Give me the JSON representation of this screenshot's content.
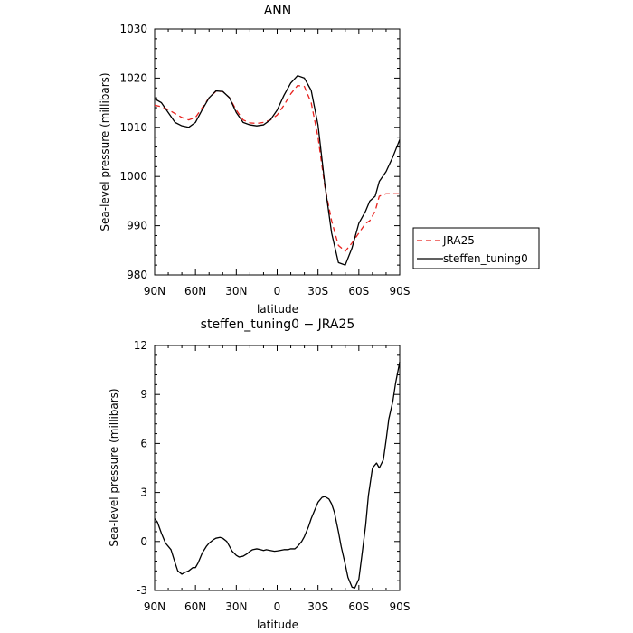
{
  "chart_data": [
    {
      "type": "line",
      "title": "ANN",
      "xlabel": "latitude",
      "ylabel": "Sea-level pressure (millibars)",
      "xlim": [
        90,
        -90
      ],
      "ylim": [
        980,
        1030
      ],
      "xticks": [
        {
          "value": 90,
          "label": "90N"
        },
        {
          "value": 60,
          "label": "60N"
        },
        {
          "value": 30,
          "label": "30N"
        },
        {
          "value": 0,
          "label": "0"
        },
        {
          "value": -30,
          "label": "30S"
        },
        {
          "value": -60,
          "label": "60S"
        },
        {
          "value": -90,
          "label": "90S"
        }
      ],
      "yticks": [
        980,
        990,
        1000,
        1010,
        1020,
        1030
      ],
      "legend_position": "right",
      "series": [
        {
          "name": "JRA25",
          "color": "#e8231f",
          "dash": "dashed",
          "x": [
            90,
            85,
            80,
            75,
            70,
            65,
            60,
            55,
            50,
            45,
            40,
            35,
            30,
            25,
            20,
            15,
            10,
            5,
            0,
            -5,
            -10,
            -15,
            -20,
            -25,
            -30,
            -35,
            -40,
            -45,
            -50,
            -55,
            -60,
            -65,
            -68,
            -72,
            -75,
            -80,
            -85,
            -90
          ],
          "y": [
            1014.5,
            1014.2,
            1013.6,
            1012.8,
            1012.0,
            1011.5,
            1012.0,
            1014.0,
            1016.0,
            1017.3,
            1017.3,
            1016.0,
            1013.5,
            1011.5,
            1010.9,
            1010.8,
            1011.0,
            1011.5,
            1012.5,
            1014.5,
            1016.8,
            1018.5,
            1018.3,
            1015.0,
            1008.0,
            998.0,
            991.0,
            986.0,
            984.8,
            986.5,
            988.5,
            990.5,
            991.0,
            993.0,
            996.0,
            996.5,
            996.5,
            996.5
          ]
        },
        {
          "name": "steffen_tuning0",
          "color": "#000000",
          "dash": "solid",
          "x": [
            90,
            85,
            80,
            75,
            70,
            65,
            60,
            55,
            50,
            45,
            40,
            35,
            30,
            25,
            20,
            15,
            10,
            5,
            0,
            -5,
            -10,
            -15,
            -20,
            -25,
            -30,
            -35,
            -40,
            -45,
            -50,
            -55,
            -60,
            -65,
            -68,
            -72,
            -75,
            -80,
            -85,
            -90
          ],
          "y": [
            1015.8,
            1015.0,
            1013.0,
            1011.0,
            1010.3,
            1010.0,
            1011.0,
            1013.6,
            1016.0,
            1017.4,
            1017.3,
            1016.0,
            1013.0,
            1011.0,
            1010.5,
            1010.3,
            1010.5,
            1011.5,
            1013.5,
            1016.5,
            1019.0,
            1020.5,
            1020.0,
            1017.5,
            1010.5,
            998.5,
            988.5,
            982.5,
            982.0,
            985.5,
            990.5,
            993.0,
            995.0,
            996.0,
            999.0,
            1001.0,
            1004.0,
            1007.5
          ]
        }
      ]
    },
    {
      "type": "line",
      "title": "steffen_tuning0 − JRA25",
      "xlabel": "latitude",
      "ylabel": "Sea-level pressure (millibars)",
      "xlim": [
        90,
        -90
      ],
      "ylim": [
        -3,
        12
      ],
      "xticks": [
        {
          "value": 90,
          "label": "90N"
        },
        {
          "value": 60,
          "label": "60N"
        },
        {
          "value": 30,
          "label": "30N"
        },
        {
          "value": 0,
          "label": "0"
        },
        {
          "value": -30,
          "label": "30S"
        },
        {
          "value": -60,
          "label": "60S"
        },
        {
          "value": -90,
          "label": "90S"
        }
      ],
      "yticks": [
        -3,
        0,
        3,
        6,
        9,
        12
      ],
      "series": [
        {
          "color": "#000000",
          "dash": "solid",
          "x": [
            90,
            88,
            85,
            82,
            80,
            78,
            75,
            73,
            70,
            68,
            65,
            62,
            60,
            58,
            55,
            52,
            50,
            47,
            45,
            42,
            40,
            37,
            35,
            33,
            30,
            28,
            25,
            22,
            20,
            18,
            15,
            12,
            10,
            8,
            5,
            2,
            0,
            -2,
            -5,
            -8,
            -10,
            -13,
            -15,
            -18,
            -20,
            -23,
            -25,
            -28,
            -30,
            -33,
            -35,
            -38,
            -40,
            -42,
            -45,
            -47,
            -50,
            -52,
            -55,
            -57,
            -60,
            -62,
            -65,
            -67,
            -70,
            -73,
            -75,
            -78,
            -80,
            -82,
            -85,
            -87,
            -90
          ],
          "y": [
            1.4,
            1.2,
            0.5,
            -0.1,
            -0.3,
            -0.5,
            -1.3,
            -1.8,
            -2.0,
            -1.9,
            -1.8,
            -1.6,
            -1.6,
            -1.3,
            -0.7,
            -0.3,
            -0.1,
            0.1,
            0.2,
            0.25,
            0.2,
            0.0,
            -0.3,
            -0.6,
            -0.85,
            -0.95,
            -0.9,
            -0.75,
            -0.6,
            -0.5,
            -0.45,
            -0.5,
            -0.55,
            -0.5,
            -0.55,
            -0.6,
            -0.58,
            -0.55,
            -0.5,
            -0.5,
            -0.45,
            -0.45,
            -0.3,
            0.0,
            0.3,
            0.9,
            1.4,
            2.0,
            2.4,
            2.7,
            2.75,
            2.6,
            2.3,
            1.8,
            0.6,
            -0.3,
            -1.4,
            -2.2,
            -2.8,
            -2.85,
            -2.3,
            -1.0,
            1.0,
            2.8,
            4.5,
            4.8,
            4.5,
            5.0,
            6.2,
            7.5,
            8.6,
            9.7,
            11.0
          ]
        }
      ]
    }
  ]
}
